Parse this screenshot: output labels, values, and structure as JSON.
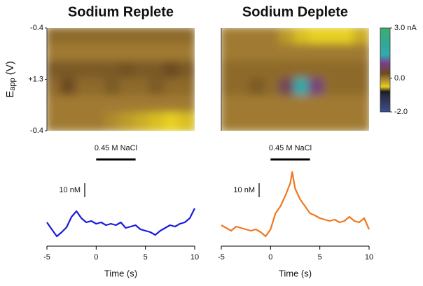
{
  "chart_data": [
    {
      "type": "heatmap",
      "title": "Sodium Replete",
      "ylabel": [
        "E",
        "app",
        " (V)"
      ],
      "y_labels": [
        "-0.4",
        "+1.3",
        "-0.4"
      ],
      "z": [
        [
          0.1,
          0.1,
          0.1,
          0.1,
          0.1,
          0.1,
          0.1,
          0.1,
          0.1,
          0.1
        ],
        [
          0,
          0,
          0,
          0,
          0,
          0,
          0,
          0,
          0,
          0
        ],
        [
          0.2,
          0.2,
          0.2,
          0.2,
          0.2,
          0.25,
          0.2,
          0.2,
          0.3,
          0.2
        ],
        [
          0.1,
          0.3,
          0.1,
          0.1,
          0.2,
          0.1,
          0.1,
          0.2,
          0.1,
          0.1
        ],
        [
          0,
          0,
          0,
          0,
          0,
          0,
          0,
          0,
          0,
          0
        ],
        [
          0,
          0,
          0,
          0,
          -0.1,
          -0.2,
          -0.3,
          -0.4,
          -0.5,
          -0.4
        ]
      ]
    },
    {
      "type": "heatmap",
      "title": "Sodium Deplete",
      "z": [
        [
          0,
          0,
          0,
          0,
          -0.2,
          -0.4,
          -0.5,
          -0.5,
          -0.5,
          -0.3
        ],
        [
          0,
          0,
          0,
          0,
          0,
          0,
          0,
          0,
          0,
          0
        ],
        [
          0.1,
          0.1,
          0.1,
          0.1,
          0.1,
          0.1,
          0.1,
          0.1,
          0.1,
          0.1
        ],
        [
          0.1,
          0.1,
          0.2,
          0.1,
          0.6,
          1.6,
          0.8,
          0.1,
          0.1,
          0.1
        ],
        [
          0,
          0,
          0,
          0,
          0,
          0,
          0,
          0,
          0,
          0
        ],
        [
          0,
          0,
          0,
          0,
          0,
          0,
          0,
          0,
          0,
          0
        ]
      ],
      "colorbar": {
        "zlim": [
          -2,
          3
        ],
        "ticks": [
          {
            "value": 3,
            "label": "3.0 nA"
          },
          {
            "value": 0,
            "label": "0.0"
          },
          {
            "value": -2,
            "label": "-2.0"
          }
        ],
        "stops": [
          [
            -2,
            "#3b4f90"
          ],
          [
            -1,
            "#2a2a40"
          ],
          [
            -0.8,
            "#1a1a1a"
          ],
          [
            -0.5,
            "#e8d020"
          ],
          [
            0,
            "#a07a30"
          ],
          [
            0.3,
            "#6a4a20"
          ],
          [
            0.9,
            "#7a3f8c"
          ],
          [
            1.4,
            "#35aab0"
          ],
          [
            2,
            "#2fa89a"
          ],
          [
            3,
            "#3fae6e"
          ]
        ]
      }
    },
    {
      "type": "line",
      "color": "#1a1adc",
      "xlabel": "Time (s)",
      "x": [
        -5,
        -4.5,
        -4,
        -3.5,
        -3,
        -2.5,
        -2,
        -1.5,
        -1,
        -0.5,
        0,
        0.5,
        1,
        1.5,
        2,
        2.5,
        3,
        3.5,
        4,
        4.5,
        5,
        5.5,
        6,
        6.5,
        7,
        7.5,
        8,
        8.5,
        9,
        9.5,
        10
      ],
      "values": [
        11,
        6,
        1,
        4,
        7.5,
        15,
        19,
        14,
        11,
        12,
        10,
        11,
        9,
        10,
        9,
        11,
        7,
        8,
        9,
        6,
        5,
        4,
        2,
        5,
        7,
        9,
        8,
        10,
        11,
        14,
        21
      ],
      "xlim": [
        -5,
        10
      ],
      "xticks": [
        -5,
        0,
        5,
        10
      ],
      "ylim": [
        -5,
        50
      ],
      "scalebar": {
        "value": 10,
        "label": "10 nM"
      },
      "stimulus": {
        "label": "0.45 M NaCl",
        "start": 0,
        "end": 4
      }
    },
    {
      "type": "line",
      "color": "#f07820",
      "xlabel": "Time (s)",
      "x": [
        -5,
        -4.5,
        -4,
        -3.5,
        -3,
        -2.5,
        -2,
        -1.5,
        -1,
        -0.5,
        0,
        0.5,
        1,
        1.5,
        2,
        2.2,
        2.5,
        3,
        3.5,
        4,
        4.5,
        5,
        5.5,
        6,
        6.5,
        7,
        7.5,
        8,
        8.5,
        9,
        9.5,
        10
      ],
      "values": [
        9,
        7,
        5,
        8,
        7,
        6,
        5,
        6,
        4,
        1,
        6,
        17.5,
        22.5,
        30,
        39,
        47,
        35,
        27.5,
        22.5,
        17.5,
        16,
        14,
        13,
        12,
        13,
        11,
        12,
        15,
        12,
        11,
        14,
        6
      ],
      "xlim": [
        -5,
        10
      ],
      "xticks": [
        -5,
        0,
        5,
        10
      ],
      "ylim": [
        -5,
        50
      ],
      "scalebar": {
        "value": 10,
        "label": "10 nM"
      },
      "stimulus": {
        "label": "0.45 M NaCl",
        "start": 0,
        "end": 4
      }
    }
  ]
}
